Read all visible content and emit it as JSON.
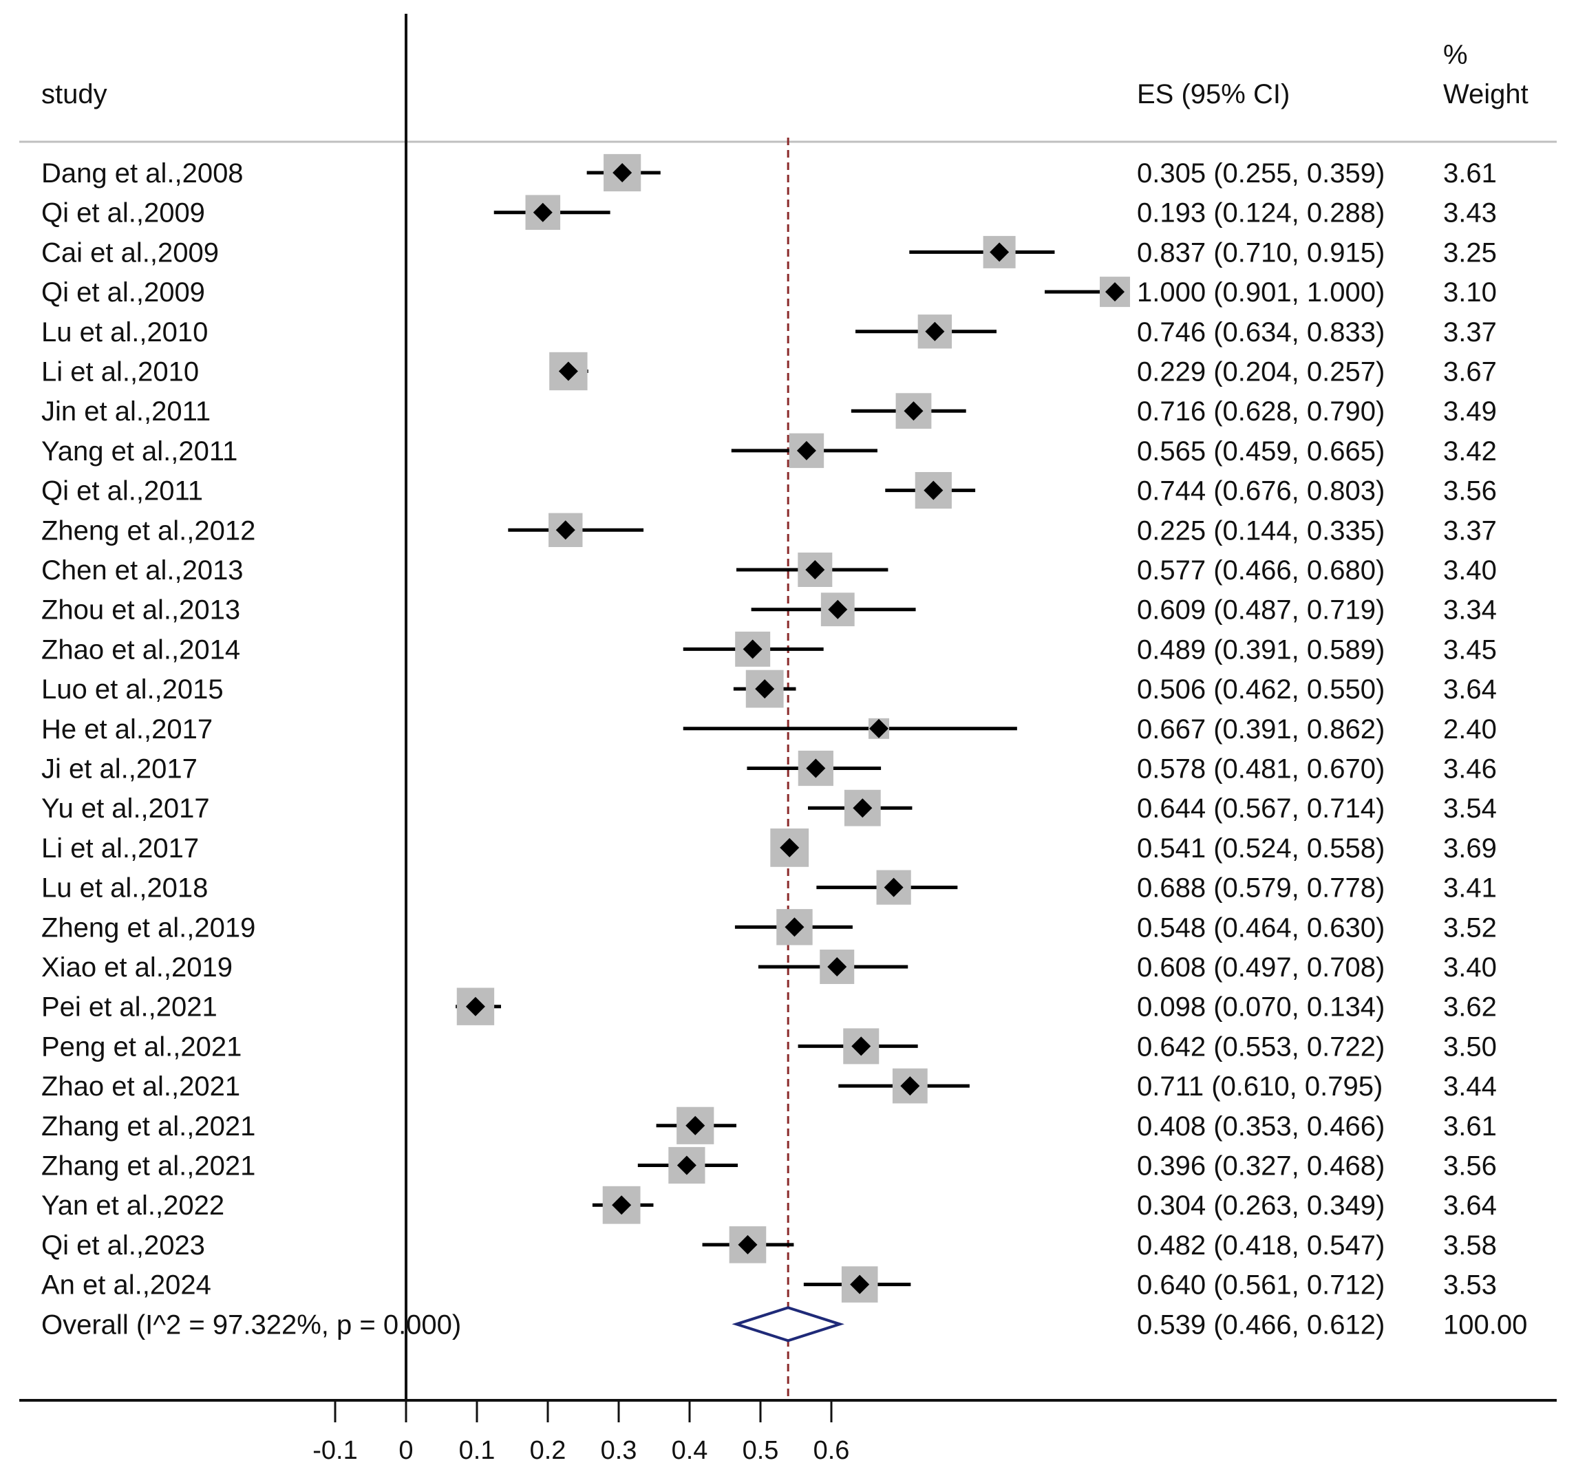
{
  "chart_data": {
    "type": "forest",
    "title": "",
    "xlabel": "",
    "ylabel": "",
    "headers": {
      "study": "study",
      "es": "ES (95% CI)",
      "weight_pct": "%",
      "weight": "Weight"
    },
    "x_ticks": [
      -0.1,
      0,
      0.1,
      0.2,
      0.3,
      0.4,
      0.5,
      0.6
    ],
    "x_tick_labels": [
      "-0.1",
      "0",
      "0.1",
      "0.2",
      "0.3",
      "0.4",
      "0.5",
      "0.6"
    ],
    "null_line": 0,
    "pooled_line": 0.539,
    "studies": [
      {
        "label": "Dang et al.,2008",
        "es": 0.305,
        "lo": 0.255,
        "hi": 0.359,
        "ci_text": "0.305 (0.255, 0.359)",
        "weight": "3.61"
      },
      {
        "label": "Qi et al.,2009",
        "es": 0.193,
        "lo": 0.124,
        "hi": 0.288,
        "ci_text": "0.193 (0.124, 0.288)",
        "weight": "3.43"
      },
      {
        "label": "Cai et al.,2009",
        "es": 0.837,
        "lo": 0.71,
        "hi": 0.915,
        "ci_text": "0.837 (0.710, 0.915)",
        "weight": "3.25"
      },
      {
        "label": "Qi et al.,2009",
        "es": 1.0,
        "lo": 0.901,
        "hi": 1.0,
        "ci_text": "1.000 (0.901, 1.000)",
        "weight": "3.10"
      },
      {
        "label": "Lu et al.,2010",
        "es": 0.746,
        "lo": 0.634,
        "hi": 0.833,
        "ci_text": "0.746 (0.634, 0.833)",
        "weight": "3.37"
      },
      {
        "label": "Li et al.,2010",
        "es": 0.229,
        "lo": 0.204,
        "hi": 0.257,
        "ci_text": "0.229 (0.204, 0.257)",
        "weight": "3.67"
      },
      {
        "label": "Jin et al.,2011",
        "es": 0.716,
        "lo": 0.628,
        "hi": 0.79,
        "ci_text": "0.716 (0.628, 0.790)",
        "weight": "3.49"
      },
      {
        "label": "Yang et al.,2011",
        "es": 0.565,
        "lo": 0.459,
        "hi": 0.665,
        "ci_text": "0.565 (0.459, 0.665)",
        "weight": "3.42"
      },
      {
        "label": "Qi et al.,2011",
        "es": 0.744,
        "lo": 0.676,
        "hi": 0.803,
        "ci_text": "0.744 (0.676, 0.803)",
        "weight": "3.56"
      },
      {
        "label": "Zheng et al.,2012",
        "es": 0.225,
        "lo": 0.144,
        "hi": 0.335,
        "ci_text": "0.225 (0.144, 0.335)",
        "weight": "3.37"
      },
      {
        "label": "Chen et al.,2013",
        "es": 0.577,
        "lo": 0.466,
        "hi": 0.68,
        "ci_text": "0.577 (0.466, 0.680)",
        "weight": "3.40"
      },
      {
        "label": "Zhou et al.,2013",
        "es": 0.609,
        "lo": 0.487,
        "hi": 0.719,
        "ci_text": "0.609 (0.487, 0.719)",
        "weight": "3.34"
      },
      {
        "label": "Zhao et al.,2014",
        "es": 0.489,
        "lo": 0.391,
        "hi": 0.589,
        "ci_text": "0.489 (0.391, 0.589)",
        "weight": "3.45"
      },
      {
        "label": "Luo et al.,2015",
        "es": 0.506,
        "lo": 0.462,
        "hi": 0.55,
        "ci_text": "0.506 (0.462, 0.550)",
        "weight": "3.64"
      },
      {
        "label": "He et al.,2017",
        "es": 0.667,
        "lo": 0.391,
        "hi": 0.862,
        "ci_text": "0.667 (0.391, 0.862)",
        "weight": "2.40"
      },
      {
        "label": "Ji et al.,2017",
        "es": 0.578,
        "lo": 0.481,
        "hi": 0.67,
        "ci_text": "0.578 (0.481, 0.670)",
        "weight": "3.46"
      },
      {
        "label": "Yu et al.,2017",
        "es": 0.644,
        "lo": 0.567,
        "hi": 0.714,
        "ci_text": "0.644 (0.567, 0.714)",
        "weight": "3.54"
      },
      {
        "label": "Li et al.,2017",
        "es": 0.541,
        "lo": 0.524,
        "hi": 0.558,
        "ci_text": "0.541 (0.524, 0.558)",
        "weight": "3.69"
      },
      {
        "label": "Lu et al.,2018",
        "es": 0.688,
        "lo": 0.579,
        "hi": 0.778,
        "ci_text": "0.688 (0.579, 0.778)",
        "weight": "3.41"
      },
      {
        "label": "Zheng et al.,2019",
        "es": 0.548,
        "lo": 0.464,
        "hi": 0.63,
        "ci_text": "0.548 (0.464, 0.630)",
        "weight": "3.52"
      },
      {
        "label": "Xiao et al.,2019",
        "es": 0.608,
        "lo": 0.497,
        "hi": 0.708,
        "ci_text": "0.608 (0.497, 0.708)",
        "weight": "3.40"
      },
      {
        "label": "Pei et al.,2021",
        "es": 0.098,
        "lo": 0.07,
        "hi": 0.134,
        "ci_text": "0.098 (0.070, 0.134)",
        "weight": "3.62"
      },
      {
        "label": "Peng et al.,2021",
        "es": 0.642,
        "lo": 0.553,
        "hi": 0.722,
        "ci_text": "0.642 (0.553, 0.722)",
        "weight": "3.50"
      },
      {
        "label": "Zhao et al.,2021",
        "es": 0.711,
        "lo": 0.61,
        "hi": 0.795,
        "ci_text": "0.711 (0.610, 0.795)",
        "weight": "3.44"
      },
      {
        "label": "Zhang et al.,2021",
        "es": 0.408,
        "lo": 0.353,
        "hi": 0.466,
        "ci_text": "0.408 (0.353, 0.466)",
        "weight": "3.61"
      },
      {
        "label": "Zhang et al.,2021",
        "es": 0.396,
        "lo": 0.327,
        "hi": 0.468,
        "ci_text": "0.396 (0.327, 0.468)",
        "weight": "3.56"
      },
      {
        "label": "Yan et al.,2022",
        "es": 0.304,
        "lo": 0.263,
        "hi": 0.349,
        "ci_text": "0.304 (0.263, 0.349)",
        "weight": "3.64"
      },
      {
        "label": "Qi et al.,2023",
        "es": 0.482,
        "lo": 0.418,
        "hi": 0.547,
        "ci_text": "0.482 (0.418, 0.547)",
        "weight": "3.58"
      },
      {
        "label": "An et al.,2024",
        "es": 0.64,
        "lo": 0.561,
        "hi": 0.712,
        "ci_text": "0.640 (0.561, 0.712)",
        "weight": "3.53"
      }
    ],
    "overall": {
      "label": "Overall  (I^2 = 97.322%, p = 0.000)",
      "es": 0.539,
      "lo": 0.466,
      "hi": 0.612,
      "ci_text": "0.539 (0.466, 0.612)",
      "weight": "100.00"
    },
    "colors": {
      "ci_line": "#000000",
      "point": "#000000",
      "weight_box": "#bdbdbd",
      "pooled_line": "#8b2b2b",
      "overall_diamond": "#1f2a78",
      "axis": "#111111",
      "header_rule": "#bfbfbf"
    }
  }
}
